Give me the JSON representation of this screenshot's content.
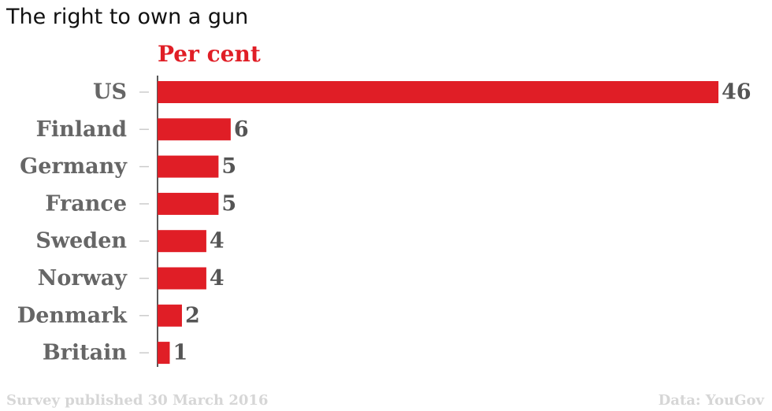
{
  "chart_data": {
    "type": "bar",
    "orientation": "horizontal",
    "title": "The right to own a gun",
    "unit_label": "Per cent",
    "categories": [
      "US",
      "Finland",
      "Germany",
      "France",
      "Sweden",
      "Norway",
      "Denmark",
      "Britain"
    ],
    "values": [
      46,
      6,
      5,
      5,
      4,
      4,
      2,
      1
    ],
    "xlim": [
      0,
      46
    ],
    "grid": false,
    "legend": "none"
  },
  "footer": {
    "source_note": "Survey published 30 March 2016",
    "credit": "Data: YouGov"
  },
  "colors": {
    "bar": "#e01e26",
    "unit_label": "#e01e26",
    "category_text": "#666666",
    "value_text": "#555555",
    "axis": "#222222",
    "tick": "#cccccc",
    "footer_text": "#d6d6d6"
  }
}
